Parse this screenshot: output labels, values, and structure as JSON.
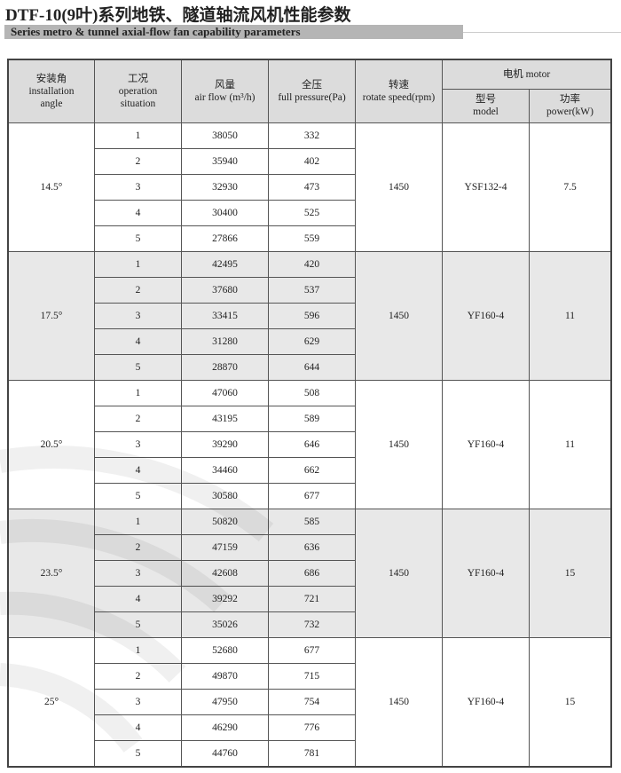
{
  "header": {
    "title": "DTF-10(9叶)系列地铁、隧道轴流风机性能参数",
    "subtitle": "Series metro & tunnel axial-flow fan capability parameters"
  },
  "table": {
    "columns": {
      "angle": {
        "zh": "安装角",
        "en1": "installation",
        "en2": "angle"
      },
      "situation": {
        "zh": "工况",
        "en1": "operation",
        "en2": "situation"
      },
      "airflow": {
        "zh": "风量",
        "en": "air flow (m³/h)"
      },
      "pressure": {
        "zh": "全压",
        "en": "full pressure(Pa)"
      },
      "speed": {
        "zh": "转速",
        "en": "rotate speed(rpm)"
      },
      "motor": {
        "label": "电机 motor"
      },
      "model": {
        "zh": "型号",
        "en": "model"
      },
      "power": {
        "zh": "功率",
        "en": "power(kW)"
      }
    },
    "groups": [
      {
        "angle": "14.5°",
        "speed": "1450",
        "model": "YSF132-4",
        "power": "7.5",
        "rows": [
          {
            "situation": "1",
            "airflow": "38050",
            "pressure": "332"
          },
          {
            "situation": "2",
            "airflow": "35940",
            "pressure": "402"
          },
          {
            "situation": "3",
            "airflow": "32930",
            "pressure": "473"
          },
          {
            "situation": "4",
            "airflow": "30400",
            "pressure": "525"
          },
          {
            "situation": "5",
            "airflow": "27866",
            "pressure": "559"
          }
        ]
      },
      {
        "angle": "17.5°",
        "speed": "1450",
        "model": "YF160-4",
        "power": "11",
        "rows": [
          {
            "situation": "1",
            "airflow": "42495",
            "pressure": "420"
          },
          {
            "situation": "2",
            "airflow": "37680",
            "pressure": "537"
          },
          {
            "situation": "3",
            "airflow": "33415",
            "pressure": "596"
          },
          {
            "situation": "4",
            "airflow": "31280",
            "pressure": "629"
          },
          {
            "situation": "5",
            "airflow": "28870",
            "pressure": "644"
          }
        ]
      },
      {
        "angle": "20.5°",
        "speed": "1450",
        "model": "YF160-4",
        "power": "11",
        "rows": [
          {
            "situation": "1",
            "airflow": "47060",
            "pressure": "508"
          },
          {
            "situation": "2",
            "airflow": "43195",
            "pressure": "589"
          },
          {
            "situation": "3",
            "airflow": "39290",
            "pressure": "646"
          },
          {
            "situation": "4",
            "airflow": "34460",
            "pressure": "662"
          },
          {
            "situation": "5",
            "airflow": "30580",
            "pressure": "677"
          }
        ]
      },
      {
        "angle": "23.5°",
        "speed": "1450",
        "model": "YF160-4",
        "power": "15",
        "rows": [
          {
            "situation": "1",
            "airflow": "50820",
            "pressure": "585"
          },
          {
            "situation": "2",
            "airflow": "47159",
            "pressure": "636"
          },
          {
            "situation": "3",
            "airflow": "42608",
            "pressure": "686"
          },
          {
            "situation": "4",
            "airflow": "39292",
            "pressure": "721"
          },
          {
            "situation": "5",
            "airflow": "35026",
            "pressure": "732"
          }
        ]
      },
      {
        "angle": "25°",
        "speed": "1450",
        "model": "YF160-4",
        "power": "15",
        "rows": [
          {
            "situation": "1",
            "airflow": "52680",
            "pressure": "677"
          },
          {
            "situation": "2",
            "airflow": "49870",
            "pressure": "715"
          },
          {
            "situation": "3",
            "airflow": "47950",
            "pressure": "754"
          },
          {
            "situation": "4",
            "airflow": "46290",
            "pressure": "776"
          },
          {
            "situation": "5",
            "airflow": "44760",
            "pressure": "781"
          }
        ]
      }
    ]
  }
}
